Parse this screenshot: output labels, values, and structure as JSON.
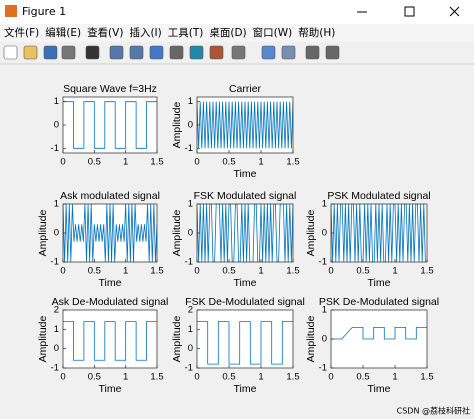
{
  "window": {
    "title": "Figure 1",
    "menu": [
      "文件(F)",
      "编辑(E)",
      "查看(V)",
      "插入(I)",
      "工具(T)",
      "桌面(D)",
      "窗口(W)",
      "帮助(H)"
    ],
    "watermark": "CSDN @荔枝科研社"
  },
  "chart_data": [
    {
      "type": "line",
      "title": "Square Wave f=3Hz",
      "color": "#0072bd",
      "x": [
        0,
        0.167,
        0.167,
        0.333,
        0.333,
        0.5,
        0.5,
        0.667,
        0.667,
        0.833,
        0.833,
        1,
        1,
        1.167,
        1.167,
        1.333,
        1.333,
        1.5
      ],
      "values": [
        1,
        1,
        -1,
        -1,
        1,
        1,
        -1,
        -1,
        1,
        1,
        -1,
        -1,
        1,
        1,
        -1,
        -1,
        1,
        1
      ],
      "xlim": [
        0,
        1.5
      ],
      "xticks": [
        0,
        0.5,
        1,
        1.5
      ],
      "ylim": [
        -1.2,
        1.2
      ],
      "yticks": [
        -1,
        0,
        1
      ]
    },
    {
      "type": "line",
      "title": "Carrier",
      "xlabel": "Time",
      "ylabel": "Amplitude",
      "color": "#0072bd",
      "x": [
        0,
        0.025,
        0.05,
        0.075,
        0.1,
        0.125,
        0.15,
        0.175,
        0.2,
        0.225,
        0.25,
        0.275,
        0.3,
        0.325,
        0.35,
        0.375,
        0.4,
        0.425,
        0.45,
        0.475,
        0.5,
        0.525,
        0.55,
        0.575,
        0.6,
        0.625,
        0.65,
        0.675,
        0.7,
        0.725,
        0.75,
        0.775,
        0.8,
        0.825,
        0.85,
        0.875,
        0.9,
        0.925,
        0.95,
        0.975,
        1,
        1.025,
        1.05,
        1.075,
        1.1,
        1.125,
        1.15,
        1.175,
        1.2,
        1.225,
        1.25,
        1.275,
        1.3,
        1.325,
        1.35,
        1.375,
        1.4,
        1.425,
        1.45,
        1.475,
        1.5
      ],
      "values": [
        1,
        -1,
        1,
        -1,
        1,
        -1,
        1,
        -1,
        1,
        -1,
        1,
        -1,
        1,
        -1,
        1,
        -1,
        1,
        -1,
        1,
        -1,
        1,
        -1,
        1,
        -1,
        1,
        -1,
        1,
        -1,
        1,
        -1,
        1,
        -1,
        1,
        -1,
        1,
        -1,
        1,
        -1,
        1,
        -1,
        1,
        -1,
        1,
        -1,
        1,
        -1,
        1,
        -1,
        1,
        -1,
        1,
        -1,
        1,
        -1,
        1,
        -1,
        1,
        -1,
        1,
        -1,
        1
      ],
      "xlim": [
        0,
        1.5
      ],
      "xticks": [
        0,
        0.5,
        1,
        1.5
      ],
      "ylim": [
        -1.2,
        1.2
      ],
      "yticks": [
        -1,
        0,
        1
      ]
    },
    {
      "type": "line",
      "title": "Ask modulated signal",
      "xlabel": "Time",
      "ylabel": "Amplitude",
      "color": "#0072bd",
      "x": [
        0,
        0.025,
        0.05,
        0.075,
        0.1,
        0.125,
        0.15,
        0.175,
        0.2,
        0.225,
        0.25,
        0.275,
        0.3,
        0.325,
        0.35,
        0.375,
        0.4,
        0.425,
        0.45,
        0.475,
        0.5,
        0.525,
        0.55,
        0.575,
        0.6,
        0.625,
        0.65,
        0.675,
        0.7,
        0.725,
        0.75,
        0.775,
        0.8,
        0.825,
        0.85,
        0.875,
        0.9,
        0.925,
        0.95,
        0.975,
        1,
        1.025,
        1.05,
        1.075,
        1.1,
        1.125,
        1.15,
        1.175,
        1.2,
        1.225,
        1.25,
        1.275,
        1.3,
        1.325,
        1.35,
        1.375,
        1.4,
        1.425,
        1.45,
        1.475,
        1.5
      ],
      "values": [
        1,
        -1,
        1,
        -1,
        1,
        -1,
        1,
        -0.3,
        0.3,
        -0.3,
        0.3,
        -0.3,
        0.3,
        -0.3,
        1,
        -1,
        1,
        -1,
        1,
        -1,
        0.3,
        -0.3,
        0.3,
        -0.3,
        0.3,
        -0.3,
        0.3,
        -1,
        1,
        -1,
        1,
        -1,
        1,
        -1,
        0.3,
        -0.3,
        0.3,
        -0.3,
        0.3,
        -0.3,
        1,
        -1,
        1,
        -1,
        1,
        -1,
        1,
        -0.3,
        0.3,
        -0.3,
        0.3,
        -0.3,
        0.3,
        -0.3,
        1,
        -1,
        1,
        -1,
        1,
        -1,
        0.3
      ],
      "xlim": [
        0,
        1.5
      ],
      "xticks": [
        0,
        0.5,
        1,
        1.5
      ],
      "ylim": [
        -1,
        1
      ],
      "yticks": [
        -1,
        0,
        1
      ]
    },
    {
      "type": "line",
      "title": "FSK Modulated signal",
      "xlabel": "Time",
      "ylabel": "Amplitude",
      "color": "#0072bd",
      "x": [
        0,
        0.025,
        0.05,
        0.075,
        0.1,
        0.125,
        0.15,
        0.175,
        0.2,
        0.225,
        0.25,
        0.275,
        0.3,
        0.325,
        0.35,
        0.375,
        0.4,
        0.425,
        0.45,
        0.475,
        0.5,
        0.525,
        0.55,
        0.575,
        0.6,
        0.625,
        0.65,
        0.675,
        0.7,
        0.725,
        0.75,
        0.775,
        0.8,
        0.825,
        0.85,
        0.875,
        0.9,
        0.925,
        0.95,
        0.975,
        1,
        1.025,
        1.05,
        1.075,
        1.1,
        1.125,
        1.15,
        1.175,
        1.2,
        1.225,
        1.25,
        1.275,
        1.3,
        1.325,
        1.35,
        1.375,
        1.4,
        1.425,
        1.45,
        1.475,
        1.5
      ],
      "values": [
        1,
        -1,
        1,
        -1,
        1,
        -1,
        1,
        -1,
        1,
        1,
        -1,
        -1,
        1,
        1,
        1,
        -1,
        1,
        -1,
        1,
        -1,
        1,
        1,
        -1,
        -1,
        1,
        1,
        -1,
        -1,
        1,
        -1,
        1,
        -1,
        1,
        -1,
        -1,
        -1,
        1,
        1,
        -1,
        -1,
        1,
        -1,
        1,
        -1,
        1,
        -1,
        1,
        -1,
        1,
        1,
        -1,
        -1,
        1,
        1,
        1,
        -1,
        1,
        -1,
        1,
        -1,
        1
      ],
      "xlim": [
        0,
        1.5
      ],
      "xticks": [
        0,
        0.5,
        1,
        1.5
      ],
      "ylim": [
        -1,
        1
      ],
      "yticks": [
        -1,
        0,
        1
      ]
    },
    {
      "type": "line",
      "title": "PSK Modulated signal",
      "xlabel": "Time",
      "ylabel": "Amplitude",
      "color": "#0072bd",
      "x": [
        0,
        0.025,
        0.05,
        0.075,
        0.1,
        0.125,
        0.15,
        0.175,
        0.2,
        0.225,
        0.25,
        0.275,
        0.3,
        0.325,
        0.35,
        0.375,
        0.4,
        0.425,
        0.45,
        0.475,
        0.5,
        0.525,
        0.55,
        0.575,
        0.6,
        0.625,
        0.65,
        0.675,
        0.7,
        0.725,
        0.75,
        0.775,
        0.8,
        0.825,
        0.85,
        0.875,
        0.9,
        0.925,
        0.95,
        0.975,
        1,
        1.025,
        1.05,
        1.075,
        1.1,
        1.125,
        1.15,
        1.175,
        1.2,
        1.225,
        1.25,
        1.275,
        1.3,
        1.325,
        1.35,
        1.375,
        1.4,
        1.425,
        1.45,
        1.475,
        1.5
      ],
      "values": [
        1,
        -1,
        1,
        -1,
        1,
        -1,
        1,
        1,
        -1,
        1,
        -1,
        1,
        -1,
        1,
        1,
        -1,
        1,
        -1,
        1,
        -1,
        -1,
        1,
        -1,
        1,
        -1,
        1,
        -1,
        -1,
        1,
        -1,
        1,
        -1,
        1,
        -1,
        -1,
        1,
        -1,
        1,
        -1,
        1,
        1,
        -1,
        1,
        -1,
        1,
        -1,
        1,
        1,
        -1,
        1,
        -1,
        1,
        -1,
        1,
        1,
        -1,
        1,
        -1,
        1,
        -1,
        -1
      ],
      "xlim": [
        0,
        1.5
      ],
      "xticks": [
        0,
        0.5,
        1,
        1.5
      ],
      "ylim": [
        -1,
        1
      ],
      "yticks": [
        -1,
        0,
        1
      ]
    },
    {
      "type": "line",
      "title": "Ask De-Modulated signal",
      "xlabel": "Time",
      "ylabel": "Amplitude",
      "color": "#0072bd",
      "x": [
        0,
        0.167,
        0.167,
        0.333,
        0.333,
        0.5,
        0.5,
        0.667,
        0.667,
        0.833,
        0.833,
        1,
        1,
        1.167,
        1.167,
        1.333,
        1.333,
        1.5
      ],
      "values": [
        1.4,
        1.4,
        -0.6,
        -0.6,
        1.4,
        1.4,
        -0.6,
        -0.6,
        1.4,
        1.4,
        -0.6,
        -0.6,
        1.4,
        1.4,
        -0.6,
        -0.6,
        1.4,
        1.4
      ],
      "xlim": [
        0,
        1.5
      ],
      "xticks": [
        0,
        0.5,
        1,
        1.5
      ],
      "ylim": [
        -1,
        2
      ],
      "yticks": [
        -1,
        0,
        1,
        2
      ]
    },
    {
      "type": "line",
      "title": "FSK De-Modulated signal",
      "xlabel": "Time",
      "ylabel": "Amplitude",
      "color": "#0072bd",
      "x": [
        0,
        0.167,
        0.167,
        0.333,
        0.333,
        0.5,
        0.5,
        0.667,
        0.667,
        0.833,
        0.833,
        1,
        1,
        1.167,
        1.167,
        1.333,
        1.333,
        1.5
      ],
      "values": [
        1.4,
        1.4,
        -0.8,
        -0.8,
        1.4,
        1.4,
        -0.8,
        -0.8,
        1.4,
        1.4,
        -0.8,
        -0.8,
        1.4,
        1.4,
        -0.8,
        -0.8,
        1.4,
        1.4
      ],
      "xlim": [
        0,
        1.5
      ],
      "xticks": [
        0,
        0.5,
        1,
        1.5
      ],
      "ylim": [
        -1,
        2
      ],
      "yticks": [
        -1,
        0,
        1,
        2
      ]
    },
    {
      "type": "line",
      "title": "PSK De-Modulated signal",
      "xlabel": "Time",
      "ylabel": "Amplitude",
      "color": "#0072bd",
      "x": [
        0,
        0.167,
        0.167,
        0.333,
        0.333,
        0.5,
        0.5,
        0.667,
        0.667,
        0.833,
        0.833,
        1,
        1,
        1.167,
        1.167,
        1.333,
        1.333,
        1.5
      ],
      "values": [
        0,
        0,
        0,
        0.4,
        0.4,
        0.4,
        0,
        0,
        0.4,
        0.4,
        0,
        0,
        0.4,
        0.4,
        0,
        0,
        0.4,
        0.4
      ],
      "xlim": [
        0,
        1.5
      ],
      "xticks": [
        0,
        0.5,
        1,
        1.5
      ],
      "ylim": [
        -1,
        1
      ],
      "yticks": [
        -1,
        0,
        1
      ]
    }
  ]
}
